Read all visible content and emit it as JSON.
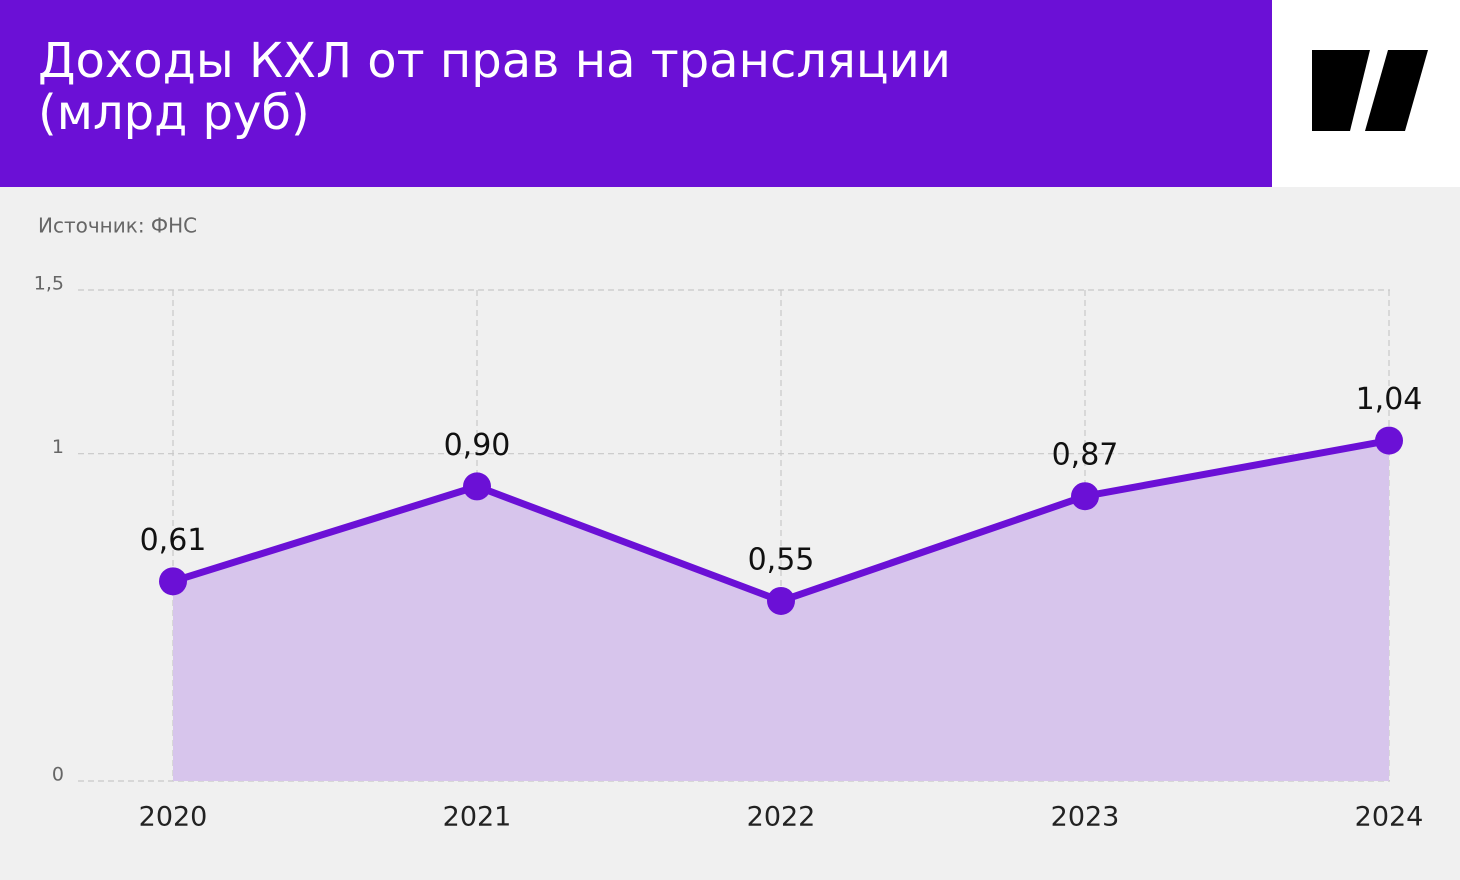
{
  "title": "Доходы КХЛ от прав на трансляции",
  "subtitle": "(млрд руб)",
  "source": "Источник: ФНС",
  "chart_data": {
    "type": "area",
    "categories": [
      "2020",
      "2021",
      "2022",
      "2023",
      "2024"
    ],
    "values": [
      0.61,
      0.9,
      0.55,
      0.87,
      1.04
    ],
    "value_labels": [
      "0,61",
      "0,90",
      "0,55",
      "0,87",
      "1,04"
    ],
    "color": "#6b10d6",
    "fill": "#d7c5ec",
    "ylim": [
      0,
      1.5
    ],
    "yticks": [
      0,
      1,
      {
        "value": 1.5,
        "label": "1,5"
      }
    ],
    "grid": true
  }
}
